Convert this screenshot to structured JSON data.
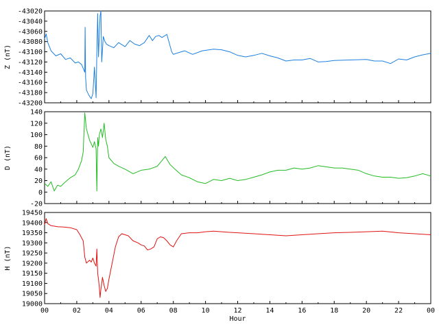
{
  "chart_data": [
    {
      "type": "line",
      "ylabel": "Z (nT)",
      "xlabel": "",
      "color": "#1a7fe0",
      "xlim": [
        0,
        24
      ],
      "ylim": [
        -43200,
        -43020
      ],
      "yticks": [
        "-43020",
        "-43040",
        "-43060",
        "-43080",
        "-43100",
        "-43120",
        "-43140",
        "-43160",
        "-43180",
        "-43200"
      ],
      "ytick_values": [
        -43020,
        -43040,
        -43060,
        -43080,
        -43100,
        -43120,
        -43140,
        -43160,
        -43180,
        -43200
      ],
      "xticks": [],
      "series": [
        {
          "x": [
            0,
            0.1,
            0.2,
            0.4,
            0.7,
            1.0,
            1.3,
            1.6,
            1.9,
            2.1,
            2.3,
            2.5,
            2.52,
            2.55,
            2.6,
            2.75,
            2.9,
            3.0,
            3.1,
            3.2,
            3.25,
            3.3,
            3.35,
            3.45,
            3.5,
            3.55,
            3.65,
            3.75,
            3.85,
            4.0,
            4.3,
            4.6,
            5.0,
            5.3,
            5.6,
            5.9,
            6.2,
            6.5,
            6.7,
            6.9,
            7.1,
            7.3,
            7.6,
            7.9,
            8.0,
            8.3,
            8.7,
            9.2,
            9.8,
            10.5,
            11.0,
            11.5,
            12.0,
            12.5,
            13.0,
            13.5,
            14.0,
            14.5,
            15.0,
            15.5,
            16.0,
            16.5,
            17.0,
            17.5,
            18.0,
            19.0,
            20.0,
            20.5,
            21.0,
            21.5,
            22.0,
            22.5,
            23.0,
            23.5,
            24.0
          ],
          "y": [
            -43075,
            -43065,
            -43082,
            -43098,
            -43108,
            -43104,
            -43115,
            -43112,
            -43122,
            -43120,
            -43125,
            -43140,
            -43052,
            -43150,
            -43175,
            -43185,
            -43192,
            -43182,
            -43130,
            -43190,
            -43100,
            -43025,
            -43110,
            -43030,
            -43020,
            -43120,
            -43070,
            -43080,
            -43085,
            -43088,
            -43092,
            -43082,
            -43090,
            -43078,
            -43085,
            -43088,
            -43082,
            -43068,
            -43078,
            -43070,
            -43068,
            -43072,
            -43066,
            -43100,
            -43105,
            -43102,
            -43098,
            -43105,
            -43098,
            -43095,
            -43096,
            -43100,
            -43107,
            -43110,
            -43107,
            -43103,
            -43108,
            -43112,
            -43118,
            -43116,
            -43116,
            -43113,
            -43120,
            -43119,
            -43117,
            -43116,
            -43115,
            -43118,
            -43118,
            -43123,
            -43114,
            -43116,
            -43110,
            -43106,
            -43103
          ]
        }
      ]
    },
    {
      "type": "line",
      "ylabel": "D (nT)",
      "xlabel": "",
      "color": "#22bb22",
      "xlim": [
        0,
        24
      ],
      "ylim": [
        -20,
        140
      ],
      "yticks": [
        "140",
        "120",
        "100",
        "80",
        "60",
        "40",
        "20",
        "0",
        "-20"
      ],
      "ytick_values": [
        140,
        120,
        100,
        80,
        60,
        40,
        20,
        0,
        -20
      ],
      "xticks": [],
      "series": [
        {
          "x": [
            0,
            0.2,
            0.4,
            0.6,
            0.8,
            1.0,
            1.3,
            1.6,
            1.9,
            2.1,
            2.3,
            2.4,
            2.5,
            2.6,
            2.8,
            3.0,
            3.1,
            3.2,
            3.25,
            3.3,
            3.35,
            3.4,
            3.5,
            3.6,
            3.7,
            3.8,
            3.9,
            4.0,
            4.3,
            4.6,
            5.0,
            5.5,
            6.0,
            6.5,
            7.0,
            7.3,
            7.5,
            7.8,
            8.1,
            8.5,
            9.0,
            9.5,
            10.0,
            10.5,
            11.0,
            11.5,
            12.0,
            12.5,
            13.0,
            13.5,
            14.0,
            14.5,
            15.0,
            15.5,
            16.0,
            16.5,
            17.0,
            17.5,
            18.0,
            18.5,
            19.0,
            19.5,
            20.0,
            20.5,
            21.0,
            21.5,
            22.0,
            22.5,
            23.0,
            23.5,
            24.0
          ],
          "y": [
            15,
            10,
            18,
            2,
            12,
            10,
            18,
            25,
            30,
            40,
            55,
            70,
            138,
            110,
            90,
            78,
            88,
            75,
            2,
            95,
            80,
            100,
            110,
            95,
            120,
            92,
            80,
            60,
            50,
            45,
            40,
            32,
            38,
            40,
            45,
            55,
            62,
            48,
            40,
            30,
            25,
            18,
            15,
            22,
            20,
            24,
            20,
            22,
            26,
            30,
            35,
            38,
            38,
            42,
            40,
            42,
            46,
            44,
            42,
            42,
            40,
            38,
            32,
            28,
            26,
            26,
            24,
            25,
            28,
            32,
            28
          ]
        }
      ]
    },
    {
      "type": "line",
      "ylabel": "H (nT)",
      "xlabel": "Hour",
      "color": "#e01010",
      "xlim": [
        0,
        24
      ],
      "ylim": [
        19000,
        19450
      ],
      "yticks": [
        "19450",
        "19400",
        "19350",
        "19300",
        "19250",
        "19200",
        "19150",
        "19100",
        "19050",
        "19000"
      ],
      "ytick_values": [
        19450,
        19400,
        19350,
        19300,
        19250,
        19200,
        19150,
        19100,
        19050,
        19000
      ],
      "xticks": [
        "00",
        "02",
        "04",
        "06",
        "08",
        "10",
        "12",
        "14",
        "16",
        "18",
        "20",
        "22",
        "00"
      ],
      "xtick_values": [
        0,
        2,
        4,
        6,
        8,
        10,
        12,
        14,
        16,
        18,
        20,
        22,
        24
      ],
      "series": [
        {
          "x": [
            0,
            0.1,
            0.2,
            0.4,
            0.8,
            1.2,
            1.6,
            2.0,
            2.2,
            2.4,
            2.5,
            2.6,
            2.8,
            2.9,
            3.0,
            3.1,
            3.2,
            3.25,
            3.3,
            3.35,
            3.4,
            3.45,
            3.5,
            3.6,
            3.7,
            3.8,
            3.9,
            4.0,
            4.2,
            4.4,
            4.6,
            4.8,
            5.0,
            5.2,
            5.5,
            5.8,
            6.0,
            6.2,
            6.4,
            6.6,
            6.8,
            7.0,
            7.2,
            7.4,
            7.6,
            7.8,
            8.0,
            8.2,
            8.5,
            9.0,
            9.5,
            10.0,
            10.5,
            11.0,
            11.5,
            12.0,
            13.0,
            14.0,
            15.0,
            16.0,
            17.0,
            18.0,
            19.0,
            20.0,
            21.0,
            22.0,
            23.0,
            24.0
          ],
          "y": [
            19390,
            19420,
            19395,
            19385,
            19380,
            19378,
            19375,
            19365,
            19340,
            19310,
            19230,
            19200,
            19215,
            19205,
            19225,
            19200,
            19185,
            19270,
            19150,
            19120,
            19080,
            19030,
            19070,
            19130,
            19090,
            19060,
            19075,
            19120,
            19200,
            19280,
            19330,
            19345,
            19340,
            19335,
            19310,
            19300,
            19290,
            19285,
            19265,
            19270,
            19280,
            19320,
            19330,
            19325,
            19310,
            19290,
            19280,
            19310,
            19345,
            19350,
            19350,
            19355,
            19358,
            19355,
            19352,
            19350,
            19345,
            19340,
            19335,
            19340,
            19345,
            19350,
            19352,
            19355,
            19358,
            19350,
            19345,
            19340
          ]
        }
      ]
    }
  ]
}
